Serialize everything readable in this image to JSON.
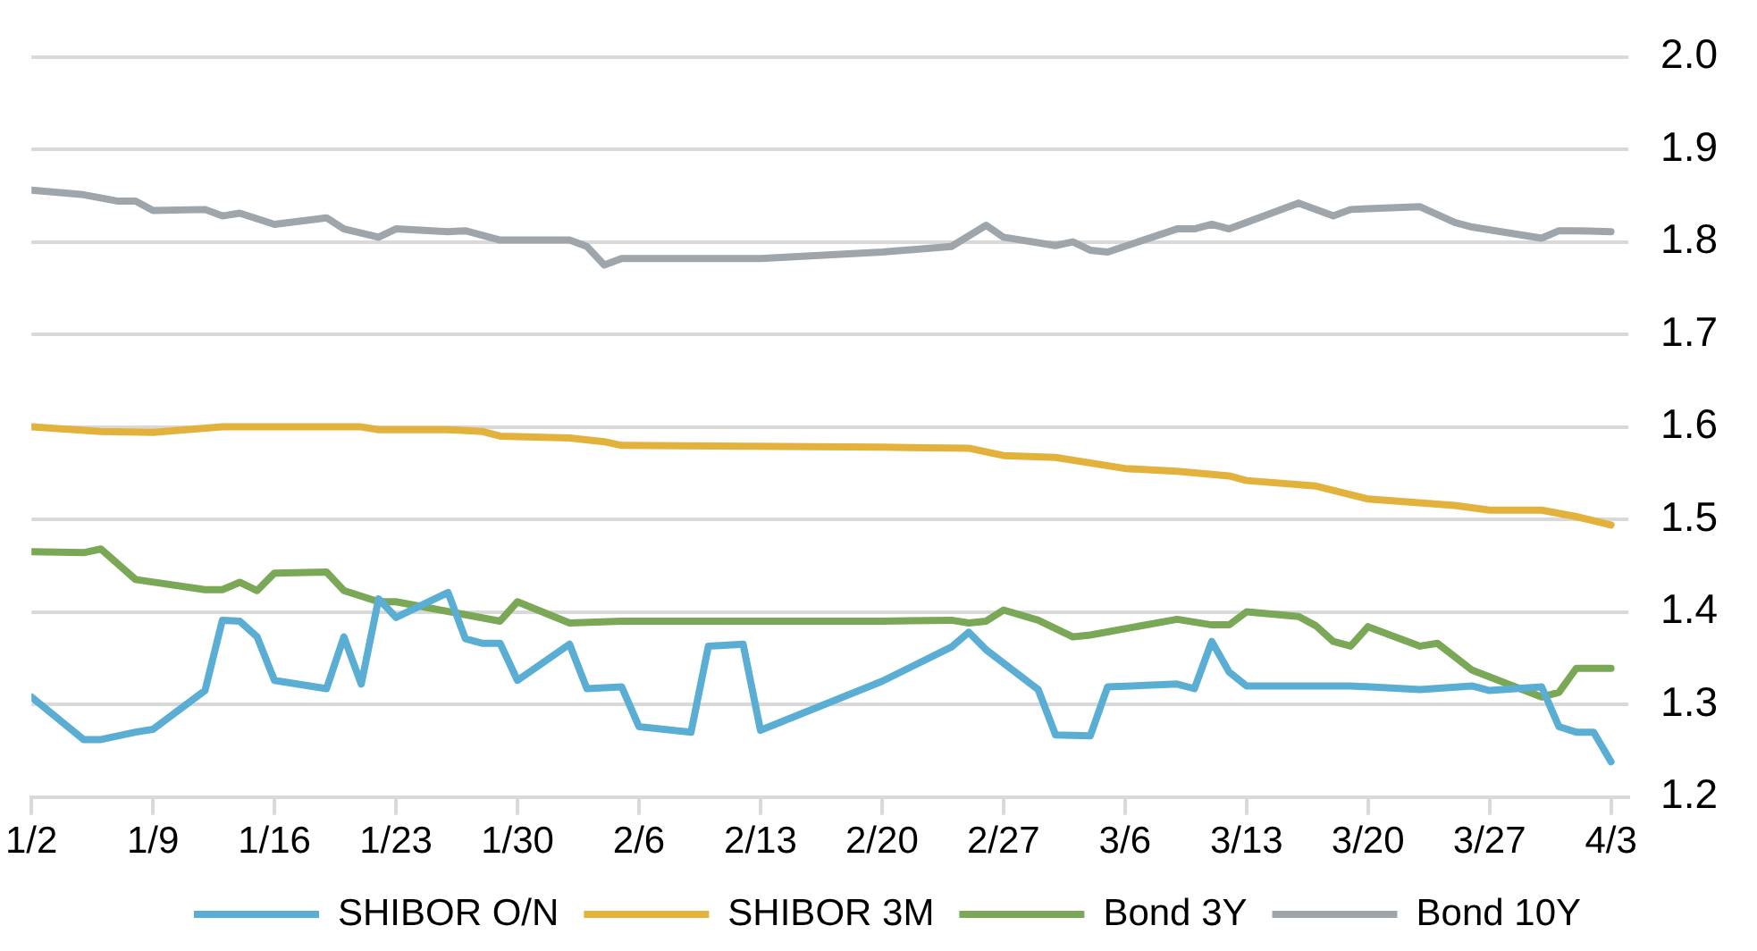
{
  "chart_data": {
    "type": "line",
    "xlim": [
      "--01-02",
      "--04-04"
    ],
    "ylim": [
      1.2,
      2.0
    ],
    "yticks": [
      1.2,
      1.3,
      1.4,
      1.5,
      1.6,
      1.7,
      1.8,
      1.9,
      {
        "value": 2.0,
        "label": "2.0"
      }
    ],
    "xticks": [
      {
        "value": "--01-02",
        "label": "1/2"
      },
      {
        "value": "--01-09",
        "label": "1/9"
      },
      {
        "value": "--01-16",
        "label": "1/16"
      },
      {
        "value": "--01-23",
        "label": "1/23"
      },
      {
        "value": "--01-30",
        "label": "1/30"
      },
      {
        "value": "--02-06",
        "label": "2/6"
      },
      {
        "value": "--02-13",
        "label": "2/13"
      },
      {
        "value": "--02-20",
        "label": "2/20"
      },
      {
        "value": "--02-27",
        "label": "2/27"
      },
      {
        "value": "--03-06",
        "label": "3/6"
      },
      {
        "value": "--03-13",
        "label": "3/13"
      },
      {
        "value": "--03-20",
        "label": "3/20"
      },
      {
        "value": "--03-27",
        "label": "3/27"
      },
      {
        "value": "--04-03",
        "label": "4/3"
      }
    ],
    "grid": "y",
    "legend": "bottom",
    "marker": "none",
    "line_style": "solid",
    "series": [
      {
        "name": "SHIBOR O/N",
        "color": "#5aaed4",
        "x": [
          "--01-02",
          "--01-05",
          "--01-06",
          "--01-08",
          "--01-09",
          "--01-12",
          "--01-13",
          "--01-14",
          "--01-15",
          "--01-16",
          "--01-19",
          "--01-20",
          "--01-21",
          "--01-22",
          "--01-23",
          "--01-26",
          "--01-27",
          "--01-28",
          "--01-29",
          "--01-30",
          "--02-02",
          "--02-03",
          "--02-05",
          "--02-06",
          "--02-09",
          "--02-10",
          "--02-12",
          "--02-13",
          "--02-20",
          "--02-24",
          "--02-25",
          "--02-26",
          "--03-01",
          "--03-02",
          "--03-04",
          "--03-05",
          "--03-09",
          "--03-10",
          "--03-11",
          "--03-12",
          "--03-13",
          "--03-19",
          "--03-23",
          "--03-26",
          "--03-27",
          "--03-30",
          "--03-31",
          "--04-01",
          "--04-02",
          "--04-03"
        ],
        "values": [
          1.308,
          1.262,
          1.262,
          1.27,
          1.273,
          1.315,
          1.391,
          1.39,
          1.373,
          1.326,
          1.317,
          1.373,
          1.322,
          1.414,
          1.394,
          1.421,
          1.371,
          1.366,
          1.366,
          1.326,
          1.365,
          1.317,
          1.319,
          1.276,
          1.27,
          1.363,
          1.365,
          1.272,
          1.325,
          1.362,
          1.378,
          1.359,
          1.316,
          1.267,
          1.266,
          1.319,
          1.322,
          1.317,
          1.368,
          1.335,
          1.32,
          1.32,
          1.316,
          1.32,
          1.315,
          1.319,
          1.276,
          1.27,
          1.27,
          1.238
        ]
      },
      {
        "name": "SHIBOR 3M",
        "color": "#e3b23c",
        "x": [
          "--01-02",
          "--01-06",
          "--01-09",
          "--01-13",
          "--01-21",
          "--01-22",
          "--01-26",
          "--01-28",
          "--01-29",
          "--02-02",
          "--02-04",
          "--02-05",
          "--02-20",
          "--02-25",
          "--02-27",
          "--03-02",
          "--03-06",
          "--03-09",
          "--03-12",
          "--03-13",
          "--03-17",
          "--03-20",
          "--03-25",
          "--03-27",
          "--03-30",
          "--04-01",
          "--04-03"
        ],
        "values": [
          1.6,
          1.595,
          1.594,
          1.6,
          1.6,
          1.597,
          1.597,
          1.595,
          1.59,
          1.588,
          1.584,
          1.58,
          1.578,
          1.577,
          1.569,
          1.567,
          1.555,
          1.552,
          1.547,
          1.542,
          1.536,
          1.522,
          1.515,
          1.51,
          1.51,
          1.503,
          1.494
        ]
      },
      {
        "name": "Bond 3Y",
        "color": "#7aa856",
        "x": [
          "--01-02",
          "--01-05",
          "--01-06",
          "--01-08",
          "--01-12",
          "--01-13",
          "--01-14",
          "--01-15",
          "--01-16",
          "--01-19",
          "--01-20",
          "--01-22",
          "--01-23",
          "--01-25",
          "--01-27",
          "--01-29",
          "--01-30",
          "--02-02",
          "--02-05",
          "--02-20",
          "--02-24",
          "--02-25",
          "--02-26",
          "--02-27",
          "--03-01",
          "--03-03",
          "--03-04",
          "--03-09",
          "--03-11",
          "--03-12",
          "--03-13",
          "--03-16",
          "--03-17",
          "--03-18",
          "--03-19",
          "--03-20",
          "--03-23",
          "--03-24",
          "--03-26",
          "--03-30",
          "--03-31",
          "--04-01",
          "--04-03"
        ],
        "values": [
          1.465,
          1.464,
          1.468,
          1.435,
          1.424,
          1.424,
          1.432,
          1.423,
          1.442,
          1.443,
          1.423,
          1.411,
          1.411,
          1.404,
          1.397,
          1.39,
          1.411,
          1.388,
          1.39,
          1.39,
          1.391,
          1.388,
          1.39,
          1.402,
          1.391,
          1.373,
          1.375,
          1.392,
          1.386,
          1.386,
          1.4,
          1.395,
          1.385,
          1.368,
          1.363,
          1.384,
          1.363,
          1.366,
          1.337,
          1.308,
          1.313,
          1.339,
          1.339
        ]
      },
      {
        "name": "Bond 10Y",
        "color": "#9ea5ab",
        "x": [
          "--01-02",
          "--01-05",
          "--01-07",
          "--01-08",
          "--01-09",
          "--01-12",
          "--01-13",
          "--01-14",
          "--01-16",
          "--01-19",
          "--01-20",
          "--01-22",
          "--01-23",
          "--01-26",
          "--01-27",
          "--01-29",
          "--02-02",
          "--02-03",
          "--02-04",
          "--02-05",
          "--02-13",
          "--02-20",
          "--02-24",
          "--02-26",
          "--02-27",
          "--03-02",
          "--03-03",
          "--03-04",
          "--03-05",
          "--03-09",
          "--03-10",
          "--03-11",
          "--03-12",
          "--03-16",
          "--03-18",
          "--03-19",
          "--03-23",
          "--03-25",
          "--03-26",
          "--03-30",
          "--03-31",
          "--04-01",
          "--04-03"
        ],
        "values": [
          1.856,
          1.851,
          1.844,
          1.844,
          1.834,
          1.835,
          1.828,
          1.831,
          1.819,
          1.826,
          1.814,
          1.805,
          1.814,
          1.811,
          1.812,
          1.802,
          1.802,
          1.795,
          1.775,
          1.782,
          1.782,
          1.789,
          1.795,
          1.818,
          1.805,
          1.796,
          1.8,
          1.791,
          1.789,
          1.814,
          1.814,
          1.819,
          1.814,
          1.842,
          1.828,
          1.835,
          1.838,
          1.821,
          1.816,
          1.804,
          1.812,
          1.812,
          1.811
        ]
      }
    ]
  }
}
